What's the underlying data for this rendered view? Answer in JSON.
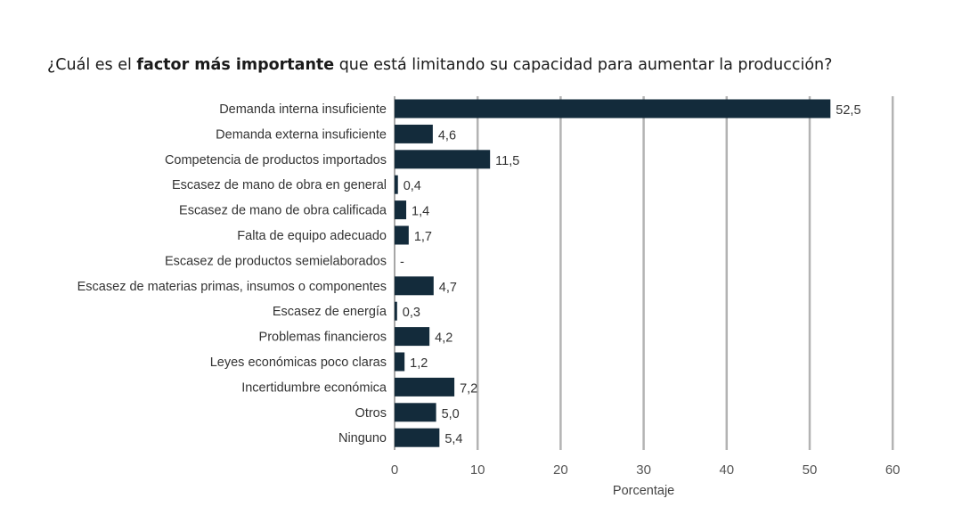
{
  "title": {
    "part1": "¿Cuál es el ",
    "bold": "factor más importante",
    "part2": " que está limitando su capacidad para aumentar la producción?"
  },
  "chart_data": {
    "type": "bar",
    "orientation": "horizontal",
    "categories": [
      "Demanda interna insuficiente",
      "Demanda externa insuficiente",
      "Competencia de productos importados",
      "Escasez de mano de obra en general",
      "Escasez de mano de obra calificada",
      "Falta de equipo adecuado",
      "Escasez de productos semielaborados",
      "Escasez de materias primas, insumos o componentes",
      "Escasez de energía",
      "Problemas financieros",
      "Leyes económicas poco claras",
      "Incertidumbre económica",
      "Otros",
      "Ninguno"
    ],
    "values": [
      52.5,
      4.6,
      11.5,
      0.4,
      1.4,
      1.7,
      null,
      4.7,
      0.3,
      4.2,
      1.2,
      7.2,
      5.0,
      5.4
    ],
    "value_labels": [
      "52,5",
      "4,6",
      "11,5",
      "0,4",
      "1,4",
      "1,7",
      "-",
      "4,7",
      "0,3",
      "4,2",
      "1,2",
      "7,2",
      "5,0",
      "5,4"
    ],
    "xlabel": "Porcentaje",
    "xlim": [
      0,
      60
    ],
    "xticks": [
      "0",
      "10",
      "20",
      "30",
      "40",
      "50",
      "60"
    ],
    "xtick_values": [
      0,
      10,
      20,
      30,
      40,
      50,
      60
    ],
    "grid": "vertical",
    "bar_color": "#132b3b",
    "grid_color": "#b3b3b3"
  }
}
